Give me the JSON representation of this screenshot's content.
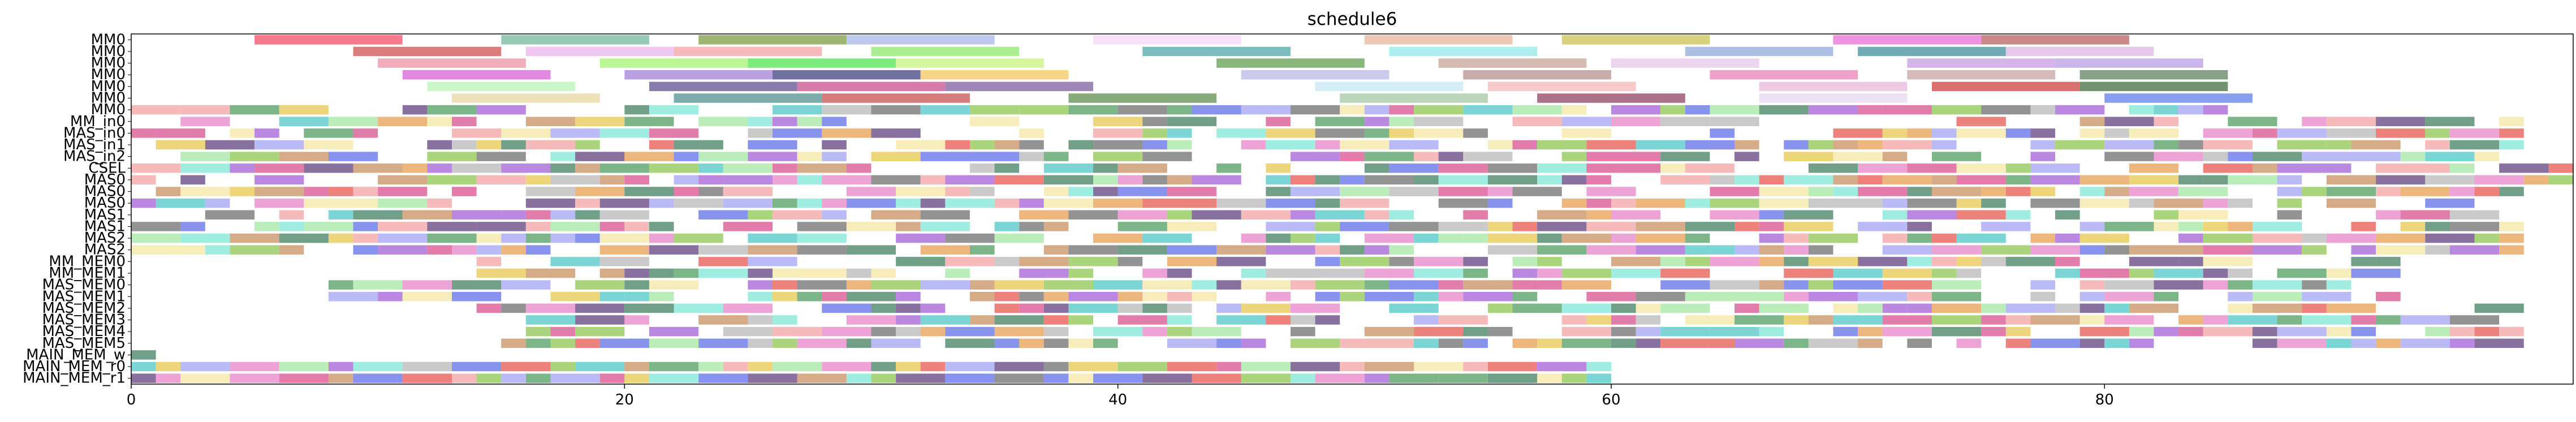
{
  "chart_data": {
    "type": "gantt",
    "title": "schedule6",
    "xlim": [
      0,
      99
    ],
    "xticks": [
      0,
      20,
      40,
      60,
      80
    ],
    "rows": [
      "MM0",
      "MM0",
      "MM0",
      "MM0",
      "MM0",
      "MM0",
      "MM0",
      "MM_in0",
      "MAS_in0",
      "MAS_in1",
      "MAS_in2",
      "CSEL",
      "MAS0",
      "MAS0",
      "MAS0",
      "MAS1",
      "MAS1",
      "MAS2",
      "MAS2",
      "MM_MEM0",
      "MM_MEM1",
      "MAS_MEM0",
      "MAS_MEM1",
      "MAS_MEM2",
      "MAS_MEM3",
      "MAS_MEM4",
      "MAS_MEM5",
      "MAIN_MEM_w",
      "MAIN_MEM_r0",
      "MAIN_MEM_r1"
    ],
    "bars": [
      {
        "row": 0,
        "start": 5,
        "end": 11,
        "color": "#f2475f"
      },
      {
        "row": 0,
        "start": 15,
        "end": 21,
        "color": "#6fb59a"
      },
      {
        "row": 0,
        "start": 23,
        "end": 29,
        "color": "#7a9a3c"
      },
      {
        "row": 0,
        "start": 29,
        "end": 35,
        "color": "#a3b5e6"
      },
      {
        "row": 0,
        "start": 39,
        "end": 45,
        "color": "#f5d5f2"
      },
      {
        "row": 0,
        "start": 50,
        "end": 56,
        "color": "#e6b39a"
      },
      {
        "row": 0,
        "start": 58,
        "end": 64,
        "color": "#cbbf4a"
      },
      {
        "row": 0,
        "start": 69,
        "end": 75,
        "color": "#e66ad6"
      },
      {
        "row": 0,
        "start": 75,
        "end": 81,
        "color": "#b55a5a"
      },
      {
        "row": 1,
        "start": 9,
        "end": 15,
        "color": "#cc4a4a"
      },
      {
        "row": 1,
        "start": 16,
        "end": 22,
        "color": "#e8b3ec"
      },
      {
        "row": 1,
        "start": 22,
        "end": 28,
        "color": "#f2a0a0"
      },
      {
        "row": 1,
        "start": 30,
        "end": 36,
        "color": "#8ce66a"
      },
      {
        "row": 1,
        "start": 41,
        "end": 47,
        "color": "#4aa5a5"
      },
      {
        "row": 1,
        "start": 51,
        "end": 57,
        "color": "#8ce6e6"
      },
      {
        "row": 1,
        "start": 63,
        "end": 69,
        "color": "#8ca5d6"
      },
      {
        "row": 1,
        "start": 70,
        "end": 76,
        "color": "#3a8a9a"
      },
      {
        "row": 1,
        "start": 76,
        "end": 82,
        "color": "#dcb3e0"
      },
      {
        "row": 2,
        "start": 10,
        "end": 16,
        "color": "#ec8da0"
      },
      {
        "row": 2,
        "start": 19,
        "end": 25,
        "color": "#a0f26a"
      },
      {
        "row": 2,
        "start": 25,
        "end": 31,
        "color": "#4ae64a"
      },
      {
        "row": 2,
        "start": 31,
        "end": 37,
        "color": "#c5f278"
      },
      {
        "row": 2,
        "start": 44,
        "end": 50,
        "color": "#5a9a4a"
      },
      {
        "row": 2,
        "start": 53,
        "end": 59,
        "color": "#c5a090"
      },
      {
        "row": 2,
        "start": 60,
        "end": 66,
        "color": "#e6c5e6"
      },
      {
        "row": 2,
        "start": 72,
        "end": 78,
        "color": "#c59ae0"
      },
      {
        "row": 2,
        "start": 78,
        "end": 84,
        "color": "#b59ae0"
      },
      {
        "row": 3,
        "start": 11,
        "end": 17,
        "color": "#d65ad6"
      },
      {
        "row": 3,
        "start": 20,
        "end": 26,
        "color": "#a07ad6"
      },
      {
        "row": 3,
        "start": 26,
        "end": 32,
        "color": "#3a3a7a"
      },
      {
        "row": 3,
        "start": 32,
        "end": 38,
        "color": "#f2c55a"
      },
      {
        "row": 3,
        "start": 45,
        "end": 51,
        "color": "#b5b5e6"
      },
      {
        "row": 3,
        "start": 54,
        "end": 60,
        "color": "#b58a8a"
      },
      {
        "row": 3,
        "start": 64,
        "end": 70,
        "color": "#e680b5"
      },
      {
        "row": 3,
        "start": 72,
        "end": 78,
        "color": "#c5a0a0"
      },
      {
        "row": 3,
        "start": 79,
        "end": 85,
        "color": "#5a7a5a"
      },
      {
        "row": 4,
        "start": 12,
        "end": 18,
        "color": "#b5f2b5"
      },
      {
        "row": 4,
        "start": 21,
        "end": 27,
        "color": "#5a4a8a"
      },
      {
        "row": 4,
        "start": 27,
        "end": 33,
        "color": "#c54a8a"
      },
      {
        "row": 4,
        "start": 33,
        "end": 39,
        "color": "#7a5a9a"
      },
      {
        "row": 4,
        "start": 48,
        "end": 54,
        "color": "#c5e6f2"
      },
      {
        "row": 4,
        "start": 55,
        "end": 61,
        "color": "#f2b5b5"
      },
      {
        "row": 4,
        "start": 66,
        "end": 72,
        "color": "#e6b5d6"
      },
      {
        "row": 4,
        "start": 73,
        "end": 79,
        "color": "#cc3a3a"
      },
      {
        "row": 4,
        "start": 79,
        "end": 85,
        "color": "#3a6a3a"
      },
      {
        "row": 5,
        "start": 13,
        "end": 19,
        "color": "#e6d5a0"
      },
      {
        "row": 5,
        "start": 22,
        "end": 28,
        "color": "#4a8a8a"
      },
      {
        "row": 5,
        "start": 28,
        "end": 34,
        "color": "#c54a4a"
      },
      {
        "row": 5,
        "start": 38,
        "end": 44,
        "color": "#5a8a4a"
      },
      {
        "row": 5,
        "start": 49,
        "end": 55,
        "color": "#a0c5a0"
      },
      {
        "row": 5,
        "start": 57,
        "end": 63,
        "color": "#8a3a5a"
      },
      {
        "row": 5,
        "start": 66,
        "end": 72,
        "color": "#e6d5f2"
      },
      {
        "row": 5,
        "start": 80,
        "end": 86,
        "color": "#5a7ae6"
      }
    ]
  }
}
